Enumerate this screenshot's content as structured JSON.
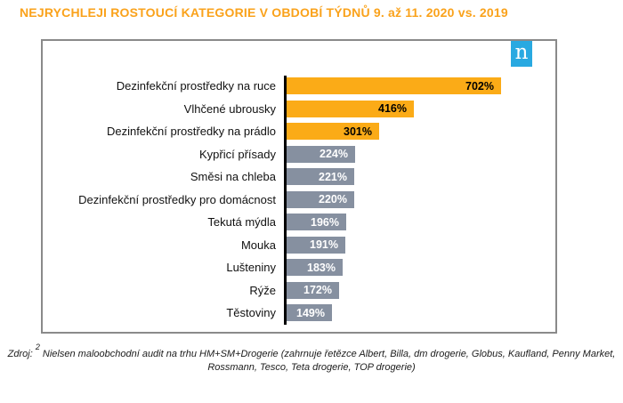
{
  "chart_data": {
    "type": "bar",
    "orientation": "horizontal",
    "title": "NEJRYCHLEJI ROSTOUCÍ KATEGORIE V OBDOBÍ TÝDNŮ 9. až 11. 2020 vs. 2019",
    "categories": [
      "Dezinfekční prostředky na ruce",
      "Vlhčené ubrousky",
      "Dezinfekční prostředky na prádlo",
      "Kypřicí přísady",
      "Směsi na chleba",
      "Dezinfekční prostředky pro domácnost",
      "Tekutá mýdla",
      "Mouka",
      "Lušteniny",
      "Rýže",
      "Těstoviny"
    ],
    "values": [
      702,
      416,
      301,
      224,
      221,
      220,
      196,
      191,
      183,
      172,
      149
    ],
    "value_suffix": "%",
    "highlight_count": 3,
    "xlim": [
      0,
      760
    ],
    "grid": false,
    "legend": false,
    "colors": {
      "title": "#FAA21B",
      "bar_highlight": "#FBAB17",
      "bar_default": "#8690A0",
      "value_on_highlight": "#000000",
      "value_on_default": "#FFFFFF",
      "axis": "#000000"
    }
  },
  "logo": {
    "letter": "n",
    "background": "#29A9E1"
  },
  "footer": {
    "prefix": "Zdroj:",
    "superscript": "2",
    "text": "Nielsen maloobchodní audit na trhu HM+SM+Drogerie (zahrnuje řetězce Albert, Billa, dm drogerie, Globus, Kaufland, Penny Market, Rossmann, Tesco, Teta drogerie, TOP drogerie)"
  }
}
